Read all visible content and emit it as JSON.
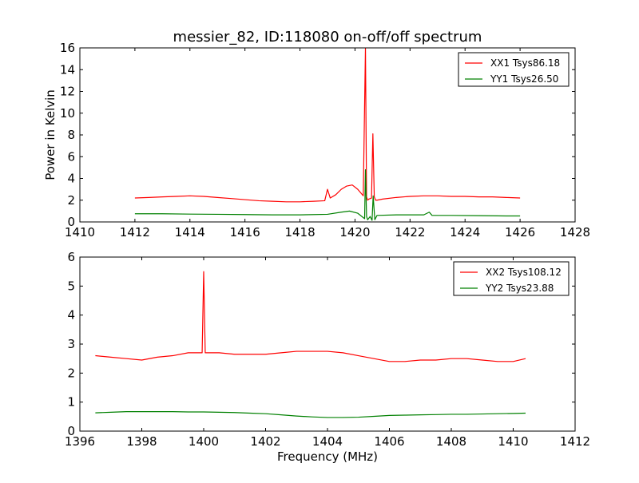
{
  "chart_data": [
    {
      "type": "line",
      "title": "messier_82, ID:118080 on-off/off spectrum",
      "xlabel": "",
      "ylabel": "Power in Kelvin",
      "xlim": [
        1410,
        1428
      ],
      "ylim": [
        0,
        16
      ],
      "xticks": [
        "1410",
        "1412",
        "1414",
        "1416",
        "1418",
        "1420",
        "1422",
        "1424",
        "1426",
        "1428"
      ],
      "yticks": [
        "0",
        "2",
        "4",
        "6",
        "8",
        "10",
        "12",
        "14",
        "16"
      ],
      "grid": false,
      "legend_position": "top-right",
      "series": [
        {
          "name": "XX1 Tsys86.18",
          "color": "#ff0000",
          "x": [
            1412.0,
            1412.5,
            1413.0,
            1413.5,
            1414.0,
            1414.5,
            1415.0,
            1415.5,
            1416.0,
            1416.5,
            1417.0,
            1417.5,
            1418.0,
            1418.5,
            1418.9,
            1419.0,
            1419.1,
            1419.3,
            1419.5,
            1419.7,
            1419.9,
            1420.1,
            1420.3,
            1420.38,
            1420.42,
            1420.46,
            1420.5,
            1420.6,
            1420.65,
            1420.7,
            1420.75,
            1420.8,
            1421.0,
            1421.5,
            1422.0,
            1422.5,
            1423.0,
            1423.5,
            1424.0,
            1424.5,
            1425.0,
            1425.5,
            1426.0
          ],
          "y": [
            2.2,
            2.25,
            2.3,
            2.35,
            2.4,
            2.35,
            2.25,
            2.15,
            2.05,
            1.95,
            1.9,
            1.85,
            1.85,
            1.9,
            1.95,
            3.0,
            2.2,
            2.5,
            3.0,
            3.3,
            3.4,
            3.0,
            2.4,
            16.0,
            2.3,
            2.0,
            2.1,
            2.2,
            8.1,
            2.3,
            2.0,
            2.0,
            2.1,
            2.25,
            2.35,
            2.4,
            2.4,
            2.35,
            2.35,
            2.3,
            2.3,
            2.25,
            2.2
          ]
        },
        {
          "name": "YY1 Tsys26.50",
          "color": "#008000",
          "x": [
            1412.0,
            1413.0,
            1414.0,
            1415.0,
            1416.0,
            1417.0,
            1418.0,
            1419.0,
            1419.5,
            1419.8,
            1420.1,
            1420.35,
            1420.38,
            1420.42,
            1420.46,
            1420.55,
            1420.62,
            1420.66,
            1420.72,
            1420.8,
            1421.5,
            1422.5,
            1422.7,
            1422.8,
            1423.5,
            1424.5,
            1425.5,
            1426.0
          ],
          "y": [
            0.75,
            0.75,
            0.72,
            0.7,
            0.68,
            0.65,
            0.65,
            0.7,
            0.9,
            1.0,
            0.8,
            0.3,
            4.8,
            0.5,
            0.2,
            0.5,
            0.15,
            2.4,
            0.2,
            0.6,
            0.65,
            0.65,
            0.9,
            0.6,
            0.6,
            0.58,
            0.55,
            0.55
          ]
        }
      ]
    },
    {
      "type": "line",
      "title": "",
      "xlabel": "Frequency (MHz)",
      "ylabel": "",
      "xlim": [
        1396,
        1412
      ],
      "ylim": [
        0,
        6
      ],
      "xticks": [
        "1396",
        "1398",
        "1400",
        "1402",
        "1404",
        "1406",
        "1408",
        "1410",
        "1412"
      ],
      "yticks": [
        "0",
        "1",
        "2",
        "3",
        "4",
        "5",
        "6"
      ],
      "grid": false,
      "legend_position": "top-right",
      "series": [
        {
          "name": "XX2 Tsys108.12",
          "color": "#ff0000",
          "x": [
            1396.5,
            1397.0,
            1397.5,
            1398.0,
            1398.5,
            1399.0,
            1399.5,
            1399.95,
            1400.0,
            1400.05,
            1400.5,
            1401.0,
            1401.5,
            1402.0,
            1402.5,
            1403.0,
            1403.5,
            1404.0,
            1404.5,
            1405.0,
            1405.5,
            1406.0,
            1406.5,
            1407.0,
            1407.5,
            1408.0,
            1408.5,
            1409.0,
            1409.5,
            1410.0,
            1410.4
          ],
          "y": [
            2.6,
            2.55,
            2.5,
            2.45,
            2.55,
            2.6,
            2.7,
            2.7,
            5.5,
            2.7,
            2.7,
            2.65,
            2.65,
            2.65,
            2.7,
            2.75,
            2.75,
            2.75,
            2.7,
            2.6,
            2.5,
            2.4,
            2.4,
            2.45,
            2.45,
            2.5,
            2.5,
            2.45,
            2.4,
            2.4,
            2.5
          ]
        },
        {
          "name": "YY2 Tsys23.88",
          "color": "#008000",
          "x": [
            1396.5,
            1397.0,
            1397.5,
            1398.0,
            1398.5,
            1399.0,
            1399.5,
            1400.0,
            1400.5,
            1401.0,
            1401.5,
            1402.0,
            1402.5,
            1403.0,
            1403.5,
            1404.0,
            1404.5,
            1405.0,
            1405.5,
            1406.0,
            1406.5,
            1407.0,
            1407.5,
            1408.0,
            1408.5,
            1409.0,
            1409.5,
            1410.0,
            1410.4
          ],
          "y": [
            0.63,
            0.65,
            0.67,
            0.67,
            0.67,
            0.67,
            0.66,
            0.66,
            0.65,
            0.64,
            0.62,
            0.6,
            0.56,
            0.52,
            0.49,
            0.47,
            0.47,
            0.48,
            0.51,
            0.54,
            0.55,
            0.56,
            0.57,
            0.58,
            0.58,
            0.59,
            0.6,
            0.61,
            0.62
          ]
        }
      ]
    }
  ]
}
